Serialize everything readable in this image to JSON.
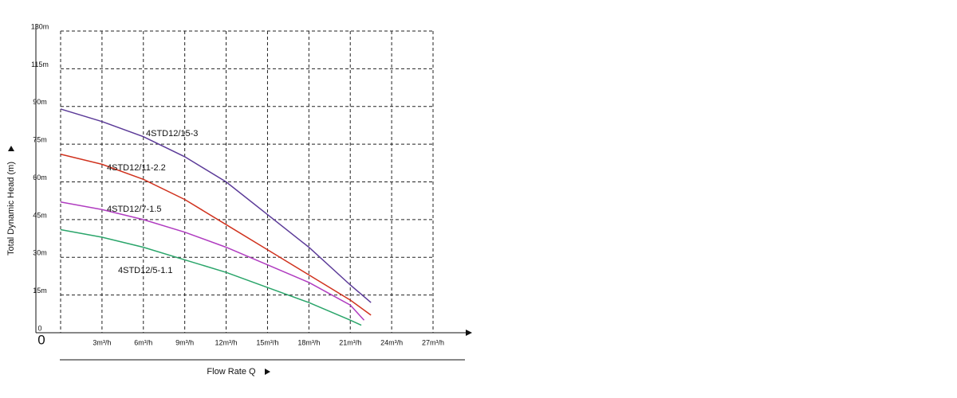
{
  "chart_data": {
    "type": "line",
    "x_label": "Flow Rate Q",
    "y_label": "Total Dynamic Head (m)",
    "origin_label": "0",
    "xlim": [
      0,
      27
    ],
    "xticks": [
      {
        "value": 3,
        "label": "3m³/h"
      },
      {
        "value": 6,
        "label": "6m³/h"
      },
      {
        "value": 9,
        "label": "9m³/h"
      },
      {
        "value": 12,
        "label": "12m³/h"
      },
      {
        "value": 15,
        "label": "15m³/h"
      },
      {
        "value": 18,
        "label": "18m³/h"
      },
      {
        "value": 21,
        "label": "21m³/h"
      },
      {
        "value": 24,
        "label": "24m³/h"
      },
      {
        "value": 27,
        "label": "27m³/h"
      }
    ],
    "ylim": [
      0,
      130
    ],
    "yticks": [
      0,
      {
        "value": 15,
        "label": "15m"
      },
      {
        "value": 30,
        "label": "30m"
      },
      {
        "value": 45,
        "label": "45m"
      },
      {
        "value": 60,
        "label": "60m"
      },
      {
        "value": 75,
        "label": "75m"
      },
      {
        "value": 90,
        "label": "90m"
      },
      {
        "value": 115,
        "label": "115m"
      },
      {
        "value": 130,
        "label": "130m"
      }
    ],
    "grid": true,
    "series": [
      {
        "name": "4STD12/15-3",
        "color": "#5b3a98",
        "x": [
          0,
          3,
          6,
          9,
          12,
          15,
          18,
          21,
          22.5
        ],
        "values": [
          89,
          84,
          78,
          70,
          60,
          47,
          34,
          19,
          12
        ]
      },
      {
        "name": "4STD12/11-2.2",
        "color": "#d0321e",
        "x": [
          0,
          3,
          6,
          9,
          12,
          15,
          18,
          21,
          22.5
        ],
        "values": [
          71,
          67,
          61,
          53,
          43,
          33,
          23,
          13,
          7
        ]
      },
      {
        "name": "4STD12/7-1.5",
        "color": "#b03cc0",
        "x": [
          0,
          3,
          6,
          9,
          12,
          15,
          18,
          21,
          22
        ],
        "values": [
          52,
          49,
          45,
          40,
          34,
          27,
          20,
          11,
          5
        ]
      },
      {
        "name": "4STD12/5-1.1",
        "color": "#2aa56a",
        "x": [
          0,
          3,
          6,
          9,
          12,
          15,
          18,
          21,
          21.8
        ],
        "values": [
          41,
          38,
          34,
          29,
          24,
          18,
          12,
          5,
          3
        ]
      }
    ]
  }
}
